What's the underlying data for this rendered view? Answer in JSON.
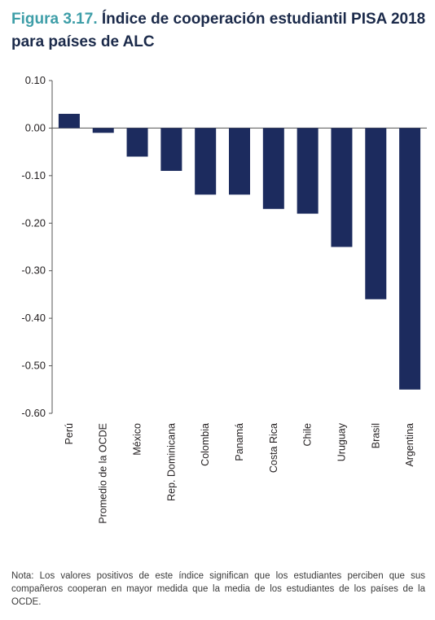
{
  "figure": {
    "label": "Figura 3.17.",
    "title": "Índice de cooperación estudiantil PISA 2018 para países de ALC"
  },
  "note": "Nota: Los valores positivos de este índice significan que los estudiantes perciben que sus compañeros cooperan en mayor medida que la media de los estudiantes de los países de la OCDE.",
  "colors": {
    "bar": "#1c2b5e",
    "axis": "#555555",
    "figure_label": "#3e9ea8"
  },
  "chart_data": {
    "type": "bar",
    "title": "Índice de cooperación estudiantil PISA 2018 para países de ALC",
    "xlabel": "",
    "ylabel": "",
    "categories": [
      "Perú",
      "Promedio de la OCDE",
      "México",
      "Rep. Dominicana",
      "Colombia",
      "Panamá",
      "Costa Rica",
      "Chile",
      "Uruguay",
      "Brasil",
      "Argentina"
    ],
    "values": [
      0.03,
      -0.01,
      -0.06,
      -0.09,
      -0.14,
      -0.14,
      -0.17,
      -0.18,
      -0.25,
      -0.36,
      -0.55
    ],
    "ylim": [
      -0.6,
      0.1
    ],
    "yticks": [
      0.1,
      0.0,
      -0.1,
      -0.2,
      -0.3,
      -0.4,
      -0.5,
      -0.6
    ],
    "ytick_labels": [
      "0.10",
      "0.00",
      "-0.10",
      "-0.20",
      "-0.30",
      "-0.40",
      "-0.50",
      "-0.60"
    ],
    "grid": false,
    "legend": "none"
  }
}
